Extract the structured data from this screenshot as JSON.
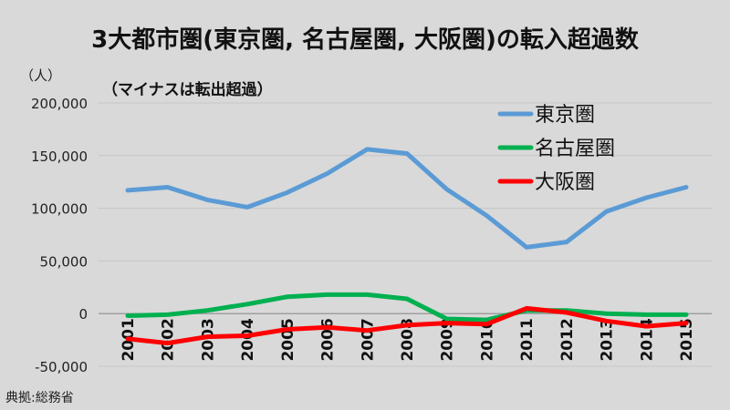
{
  "chart_data": {
    "type": "line",
    "title": "3大都市圏(東京圏, 名古屋圏, 大阪圏)の転入超過数",
    "subtitle": "（マイナスは転出超過）",
    "y_unit_label": "（人）",
    "source": "典拠:総務省",
    "x": [
      "2001",
      "2002",
      "2003",
      "2004",
      "2005",
      "2006",
      "2007",
      "2008",
      "2009",
      "2010",
      "2011",
      "2012",
      "2013",
      "2014",
      "2015"
    ],
    "y_ticks": [
      "200,000",
      "150,000",
      "100,000",
      "50,000",
      "0",
      "-50,000"
    ],
    "ylim": [
      -50000,
      200000
    ],
    "grid": true,
    "legend_position": "top-right",
    "series": [
      {
        "name": "東京圏",
        "color": "#5b9bd5",
        "values": [
          117000,
          120000,
          108000,
          101000,
          115000,
          133000,
          156000,
          152000,
          118000,
          93000,
          63000,
          68000,
          97000,
          110000,
          120000
        ]
      },
      {
        "name": "名古屋圏",
        "color": "#00b050",
        "values": [
          -2000,
          -1000,
          3000,
          9000,
          16000,
          18000,
          18000,
          14000,
          -5000,
          -6000,
          3000,
          3000,
          0,
          -1000,
          -1000
        ]
      },
      {
        "name": "大阪圏",
        "color": "#ff0000",
        "values": [
          -24000,
          -28000,
          -22000,
          -21000,
          -15000,
          -13000,
          -16000,
          -11000,
          -9000,
          -10000,
          5000,
          1000,
          -7000,
          -12000,
          -9000
        ]
      }
    ]
  }
}
